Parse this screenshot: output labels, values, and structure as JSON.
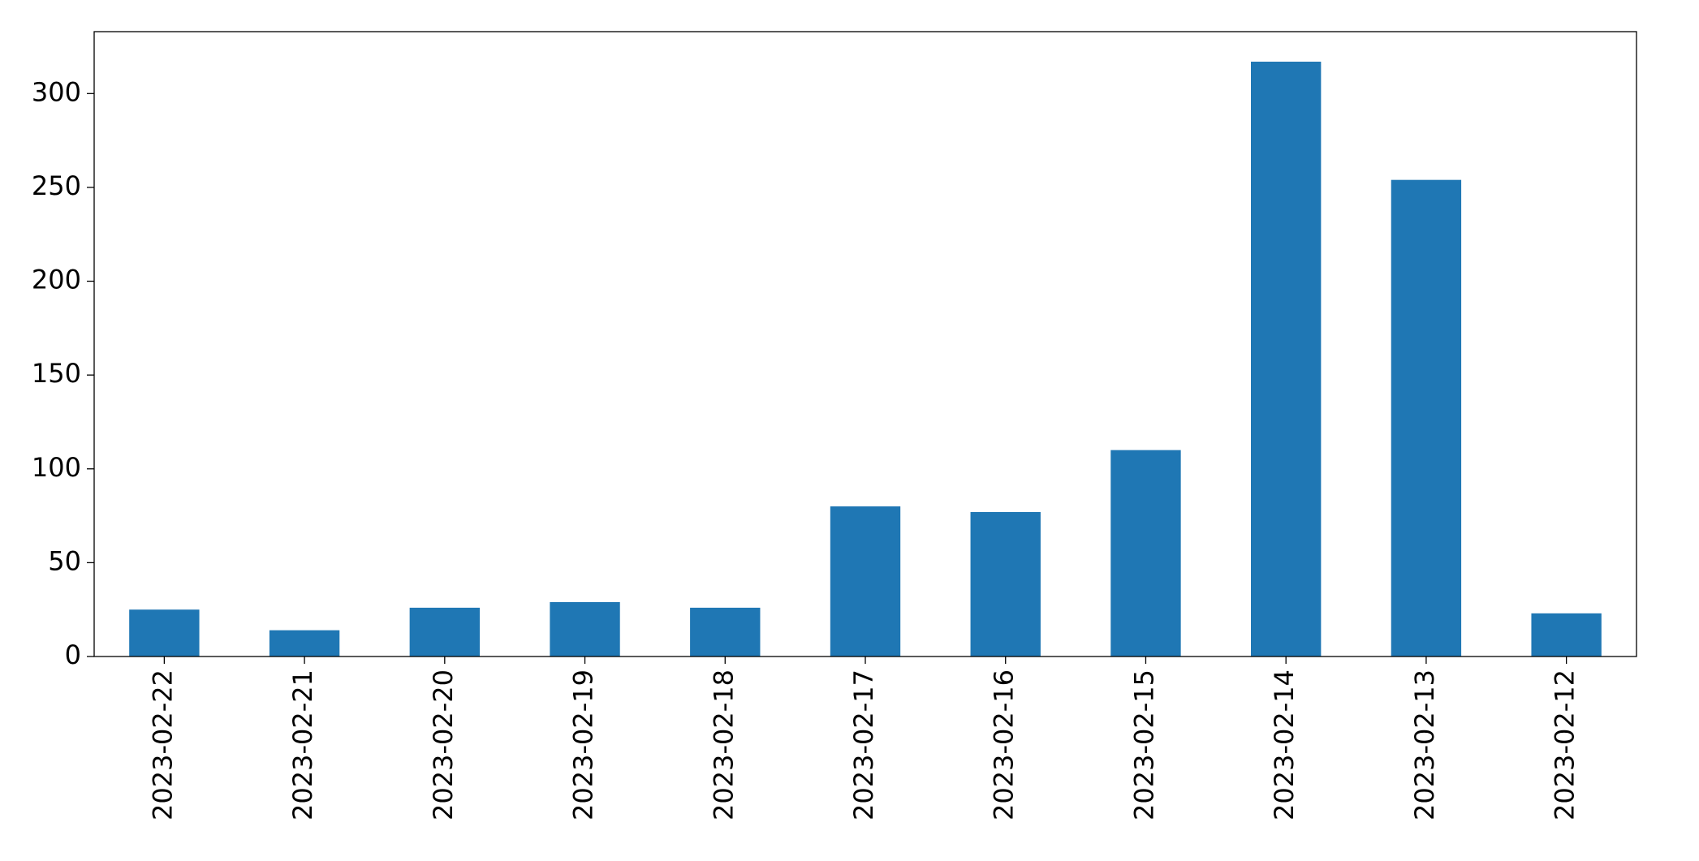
{
  "chart_data": {
    "type": "bar",
    "categories": [
      "2023-02-22",
      "2023-02-21",
      "2023-02-20",
      "2023-02-19",
      "2023-02-18",
      "2023-02-17",
      "2023-02-16",
      "2023-02-15",
      "2023-02-14",
      "2023-02-13",
      "2023-02-12"
    ],
    "values": [
      25,
      14,
      26,
      29,
      26,
      80,
      77,
      110,
      317,
      254,
      23
    ],
    "color": "#1f77b4",
    "ylim": [
      0,
      333
    ],
    "yticks": [
      0,
      50,
      100,
      150,
      200,
      250,
      300
    ],
    "grid": false
  }
}
